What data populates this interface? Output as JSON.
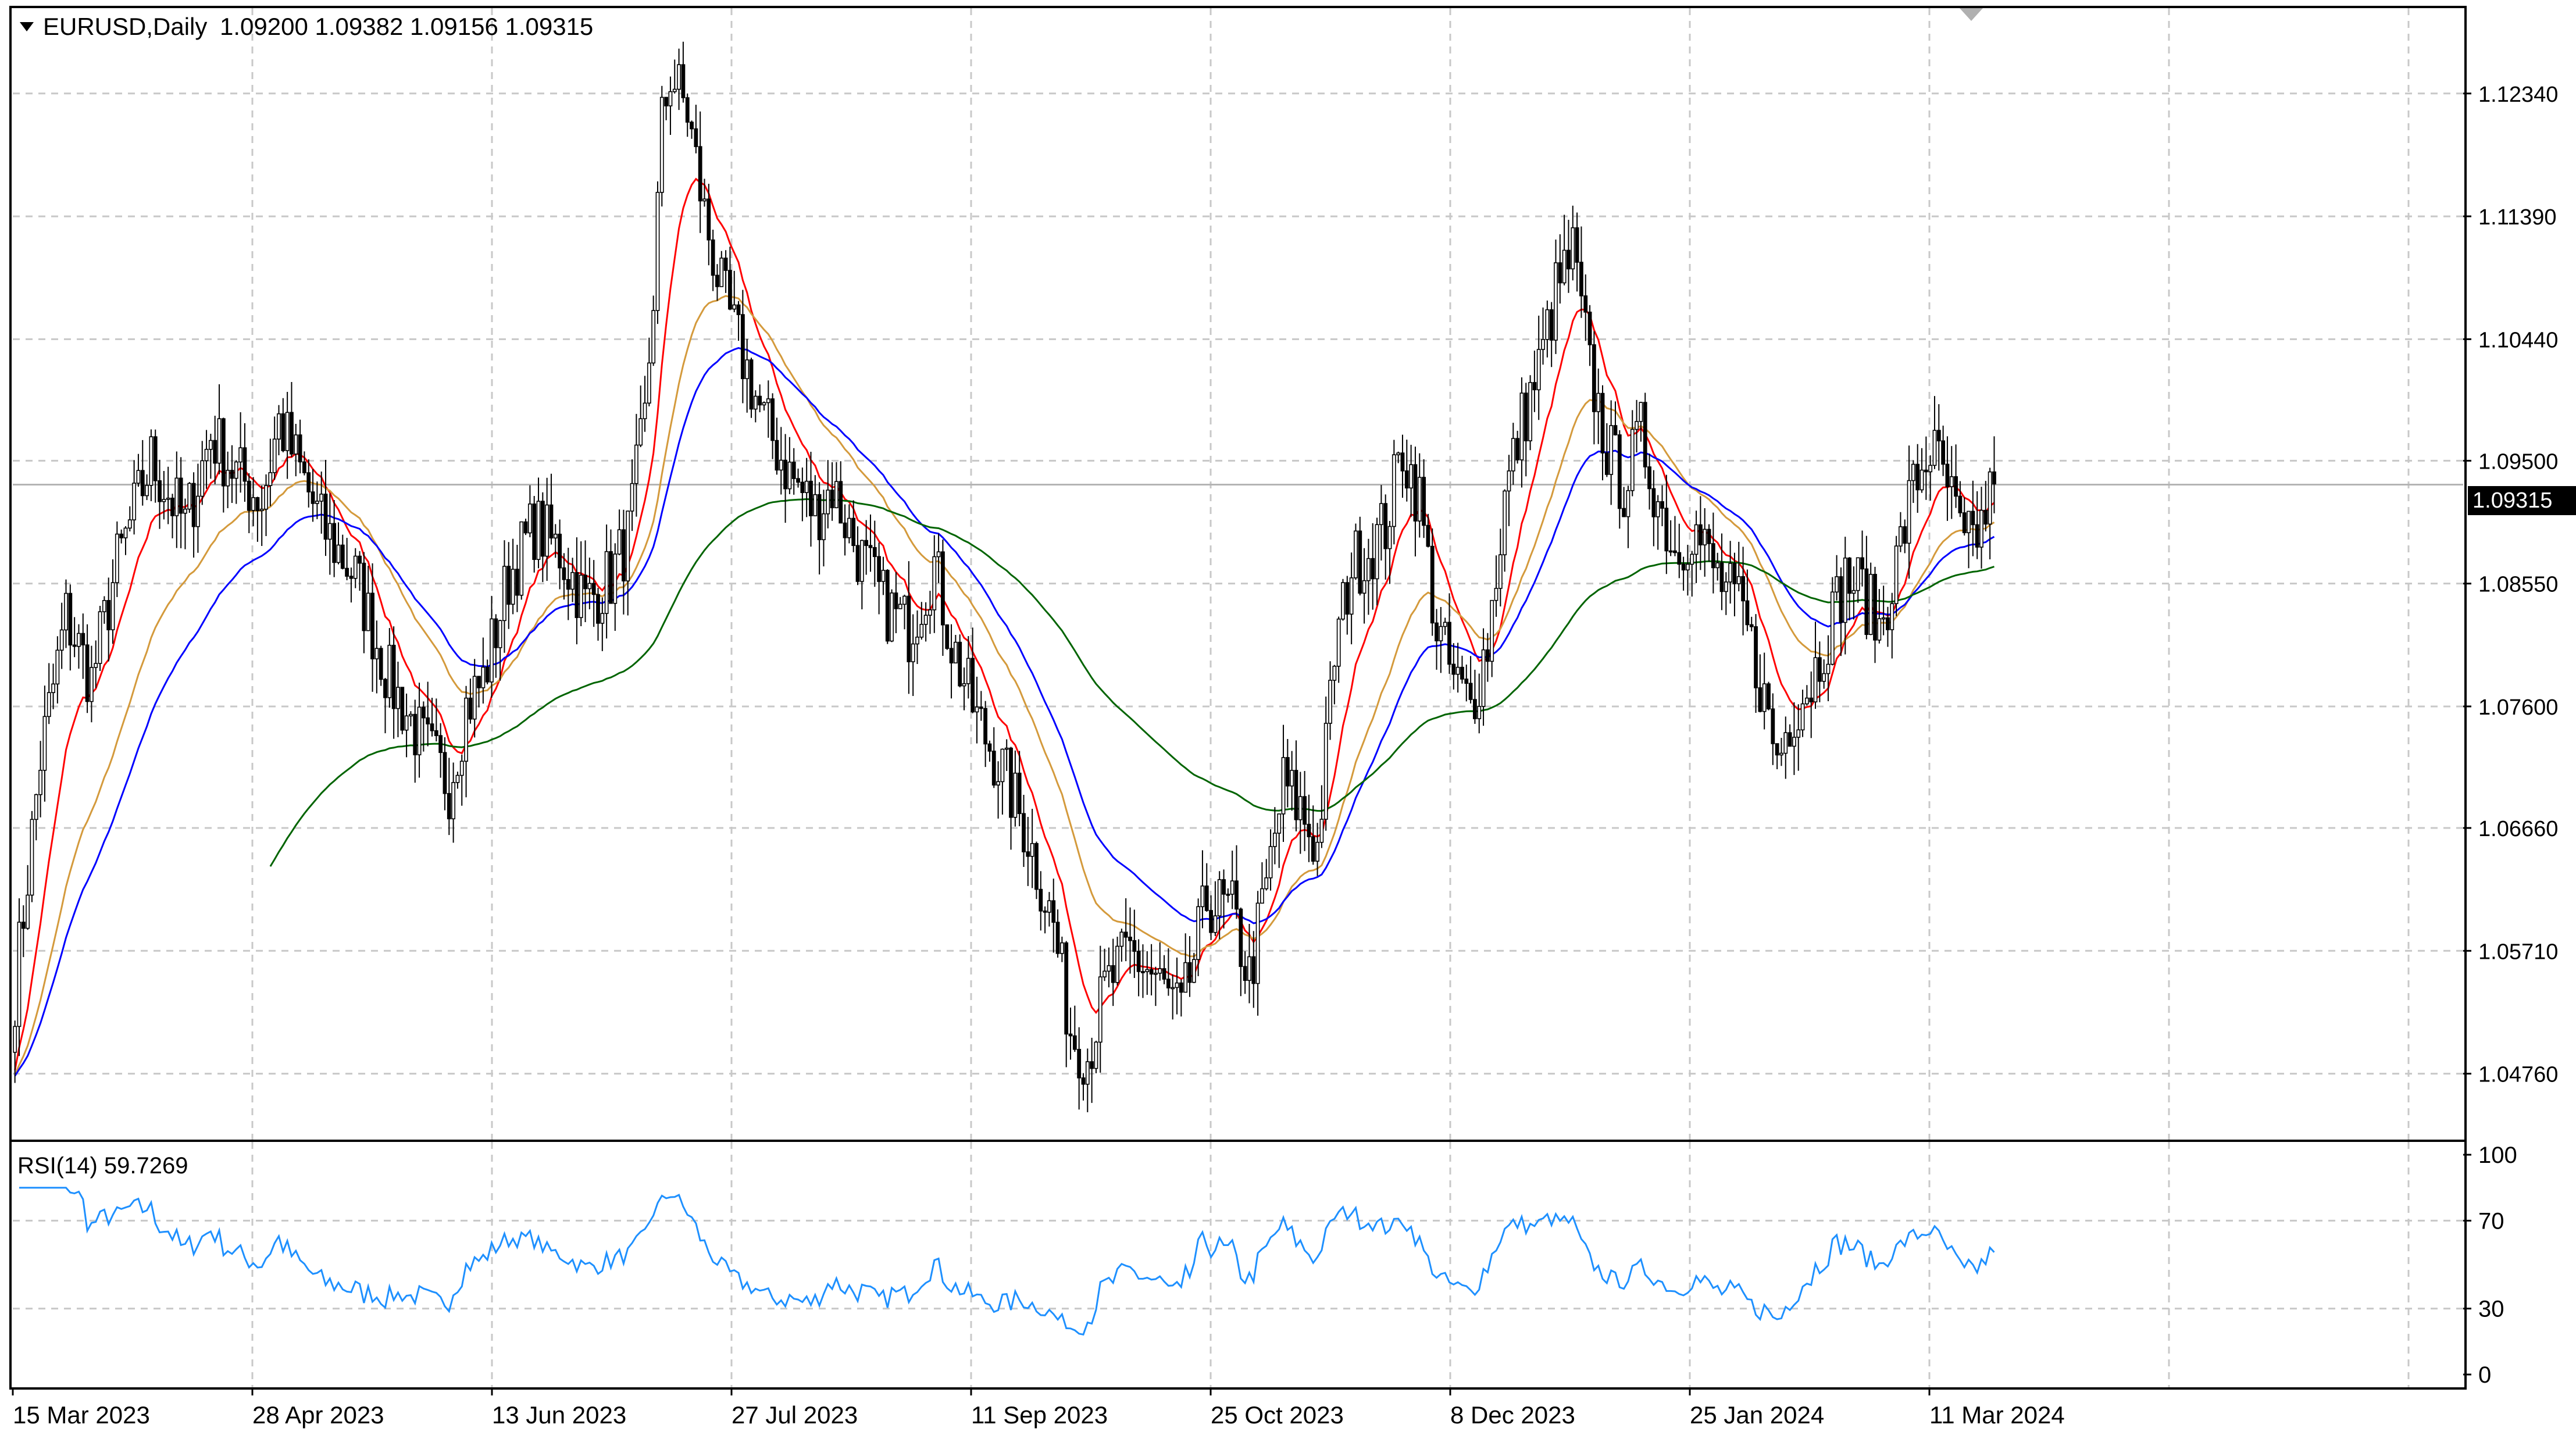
{
  "window": {
    "symbol_header": "EURUSD,Daily",
    "ohlc": "1.09200 1.09382 1.09156 1.09315",
    "current_price": "1.09315"
  },
  "colors": {
    "candle": "#000000",
    "grid": "#c8c8c8",
    "ma_red": "#ff0000",
    "ma_orange": "#d49a3c",
    "ma_blue": "#0000ff",
    "ma_green": "#006400",
    "rsi_line": "#1e90ff",
    "price_tag_bg": "#000000",
    "price_tag_text": "#ffffff"
  },
  "chart_data": [
    {
      "type": "candlestick",
      "title": "EURUSD,Daily",
      "ylim": [
        1.0425,
        1.13
      ],
      "price_ticks": [
        "1.12340",
        "1.11390",
        "1.10440",
        "1.09500",
        "1.08550",
        "1.07600",
        "1.06660",
        "1.05710",
        "1.04760"
      ],
      "date_ticks": [
        "15 Mar 2023",
        "28 Apr 2023",
        "13 Jun 2023",
        "27 Jul 2023",
        "11 Sep 2023",
        "25 Oct 2023",
        "8 Dec 2023",
        "25 Jan 2024",
        "11 Mar 2024"
      ],
      "close_path": [
        [
          0,
          1.054
        ],
        [
          6,
          1.072
        ],
        [
          12,
          1.083
        ],
        [
          18,
          1.078
        ],
        [
          24,
          1.087
        ],
        [
          32,
          1.095
        ],
        [
          40,
          1.09
        ],
        [
          46,
          1.097
        ],
        [
          52,
          1.094
        ],
        [
          58,
          1.092
        ],
        [
          62,
          1.098
        ],
        [
          66,
          1.095
        ],
        [
          72,
          1.09
        ],
        [
          80,
          1.086
        ],
        [
          88,
          1.078
        ],
        [
          96,
          1.073
        ],
        [
          102,
          1.07
        ],
        [
          106,
          1.076
        ],
        [
          110,
          1.078
        ],
        [
          116,
          1.086
        ],
        [
          122,
          1.09
        ],
        [
          128,
          1.088
        ],
        [
          134,
          1.084
        ],
        [
          140,
          1.086
        ],
        [
          144,
          1.089
        ],
        [
          148,
          1.098
        ],
        [
          150,
          1.108
        ],
        [
          152,
          1.121
        ],
        [
          154,
          1.125
        ],
        [
          158,
          1.122
        ],
        [
          162,
          1.114
        ],
        [
          166,
          1.108
        ],
        [
          170,
          1.104
        ],
        [
          176,
          1.098
        ],
        [
          182,
          1.094
        ],
        [
          188,
          1.091
        ],
        [
          192,
          1.093
        ],
        [
          198,
          1.088
        ],
        [
          204,
          1.084
        ],
        [
          210,
          1.082
        ],
        [
          216,
          1.087
        ],
        [
          220,
          1.081
        ],
        [
          226,
          1.075
        ],
        [
          232,
          1.071
        ],
        [
          238,
          1.066
        ],
        [
          244,
          1.059
        ],
        [
          248,
          1.051
        ],
        [
          252,
          1.049
        ],
        [
          256,
          1.054
        ],
        [
          262,
          1.057
        ],
        [
          268,
          1.055
        ],
        [
          274,
          1.052
        ],
        [
          280,
          1.061
        ],
        [
          286,
          1.06
        ],
        [
          290,
          1.055
        ],
        [
          294,
          1.062
        ],
        [
          298,
          1.07
        ],
        [
          302,
          1.068
        ],
        [
          306,
          1.065
        ],
        [
          310,
          1.08
        ],
        [
          314,
          1.087
        ],
        [
          318,
          1.088
        ],
        [
          322,
          1.09
        ],
        [
          326,
          1.096
        ],
        [
          330,
          1.092
        ],
        [
          334,
          1.082
        ],
        [
          338,
          1.078
        ],
        [
          342,
          1.076
        ],
        [
          346,
          1.081
        ],
        [
          350,
          1.092
        ],
        [
          354,
          1.098
        ],
        [
          358,
          1.102
        ],
        [
          362,
          1.108
        ],
        [
          366,
          1.111
        ],
        [
          370,
          1.102
        ],
        [
          374,
          1.096
        ],
        [
          378,
          1.093
        ],
        [
          382,
          1.097
        ],
        [
          386,
          1.092
        ],
        [
          390,
          1.088
        ],
        [
          394,
          1.09
        ],
        [
          400,
          1.086
        ],
        [
          406,
          1.083
        ],
        [
          410,
          1.078
        ],
        [
          414,
          1.072
        ],
        [
          418,
          1.076
        ],
        [
          422,
          1.078
        ],
        [
          426,
          1.082
        ],
        [
          430,
          1.086
        ],
        [
          434,
          1.085
        ],
        [
          438,
          1.082
        ],
        [
          442,
          1.087
        ],
        [
          446,
          1.093
        ],
        [
          450,
          1.096
        ],
        [
          454,
          1.093
        ],
        [
          458,
          1.088
        ],
        [
          462,
          1.09
        ],
        [
          465,
          1.0932
        ]
      ]
    },
    {
      "type": "line",
      "title": "RSI(14) 59.7269",
      "ylim": [
        0,
        100
      ],
      "ticks": [
        "100",
        "70",
        "30",
        "0"
      ]
    }
  ]
}
